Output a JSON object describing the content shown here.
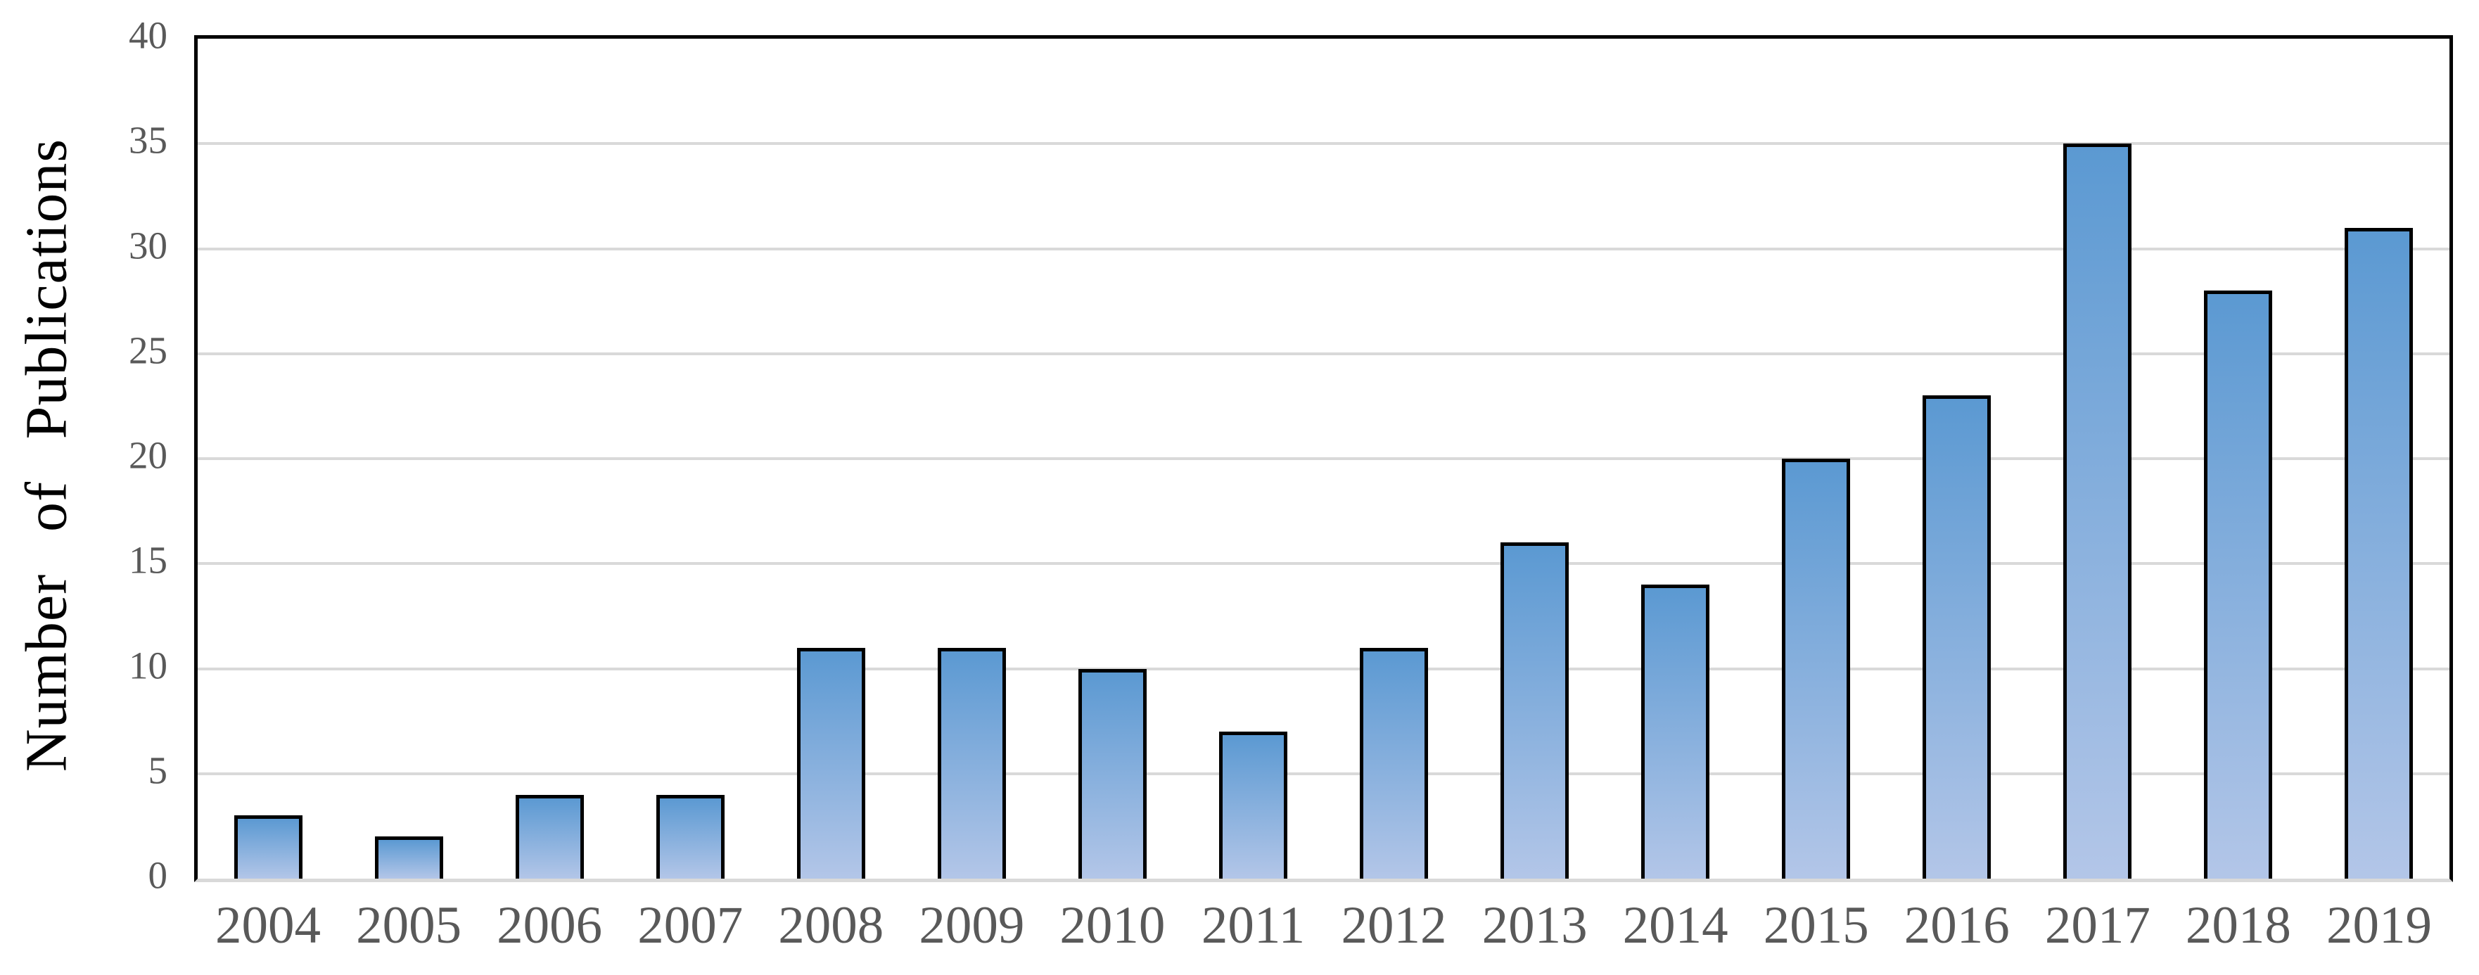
{
  "chart_data": {
    "type": "bar",
    "categories": [
      "2004",
      "2005",
      "2006",
      "2007",
      "2008",
      "2009",
      "2010",
      "2011",
      "2012",
      "2013",
      "2014",
      "2015",
      "2016",
      "2017",
      "2018",
      "2019"
    ],
    "values": [
      3,
      2,
      4,
      4,
      11,
      11,
      10,
      7,
      11,
      16,
      14,
      20,
      23,
      35,
      28,
      31
    ],
    "title": "",
    "xlabel": "",
    "ylabel": "Number of Publications",
    "ylim": [
      0,
      40
    ],
    "yticks": [
      0,
      5,
      10,
      15,
      20,
      25,
      30,
      35,
      40
    ],
    "grid": "horizontal-only",
    "legend_position": "none"
  },
  "colors": {
    "background": "#ffffff",
    "bar_gradient_top": "#5b99d2",
    "bar_gradient_bottom": "#b3c6e8",
    "bar_border": "#000000",
    "gridline": "#d9d9d9",
    "axis_border": "#000000",
    "tick_label": "#595959",
    "axis_title": "#000000"
  }
}
